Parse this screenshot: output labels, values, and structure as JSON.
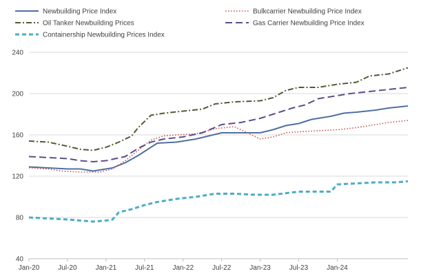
{
  "chart_data": {
    "type": "line",
    "title": "",
    "xlabel": "",
    "ylabel": "",
    "ylim": [
      40,
      240
    ],
    "yticks": [
      40,
      80,
      120,
      160,
      200,
      240
    ],
    "x_tick_labels": [
      "Jan-20",
      "Jul-20",
      "Jan-21",
      "Jul-21",
      "Jan-22",
      "Jul-22",
      "Jan-23",
      "Jul-23",
      "Jan-24"
    ],
    "grid": "horizontal",
    "legend_position": "top",
    "x_start": "Jan-20",
    "x_end": "Dec-24",
    "series": [
      {
        "name": "Newbuilding Price Index",
        "color": "#4f6fa0",
        "dash": "solid",
        "points": [
          [
            "Jan-20",
            129
          ],
          [
            "Apr-20",
            128
          ],
          [
            "Jul-20",
            127
          ],
          [
            "Sep-20",
            127
          ],
          [
            "Nov-20",
            125
          ],
          [
            "Dec-20",
            126
          ],
          [
            "Feb-21",
            128
          ],
          [
            "Apr-21",
            133
          ],
          [
            "Jun-21",
            140
          ],
          [
            "Aug-21",
            148
          ],
          [
            "Sep-21",
            152
          ],
          [
            "Dec-21",
            153
          ],
          [
            "Mar-22",
            156
          ],
          [
            "Jul-22",
            162
          ],
          [
            "Oct-22",
            162
          ],
          [
            "Jan-23",
            162
          ],
          [
            "Mar-23",
            165
          ],
          [
            "May-23",
            169
          ],
          [
            "Jul-23",
            171
          ],
          [
            "Sep-23",
            175
          ],
          [
            "Dec-23",
            178
          ],
          [
            "Feb-24",
            181
          ],
          [
            "Apr-24",
            182
          ],
          [
            "Jul-24",
            184
          ],
          [
            "Sep-24",
            186
          ],
          [
            "Dec-24",
            188
          ]
        ]
      },
      {
        "name": "Bulkcarrier Newbuilding Price Index",
        "color": "#c0504d",
        "dash": "dot",
        "points": [
          [
            "Jan-20",
            128
          ],
          [
            "Apr-20",
            127
          ],
          [
            "Jun-20",
            125
          ],
          [
            "Sep-20",
            124
          ],
          [
            "Dec-20",
            124
          ],
          [
            "Feb-21",
            127
          ],
          [
            "Apr-21",
            135
          ],
          [
            "Jun-21",
            145
          ],
          [
            "Aug-21",
            155
          ],
          [
            "Oct-21",
            159
          ],
          [
            "Dec-21",
            160
          ],
          [
            "Mar-22",
            161
          ],
          [
            "Jun-22",
            166
          ],
          [
            "Sep-22",
            168
          ],
          [
            "Nov-22",
            162
          ],
          [
            "Jan-23",
            156
          ],
          [
            "Mar-23",
            158
          ],
          [
            "May-23",
            162
          ],
          [
            "Jul-23",
            163
          ],
          [
            "Oct-23",
            164
          ],
          [
            "Jan-24",
            165
          ],
          [
            "Apr-24",
            167
          ],
          [
            "Jul-24",
            170
          ],
          [
            "Sep-24",
            172
          ],
          [
            "Dec-24",
            174
          ]
        ]
      },
      {
        "name": "Oil Tanker Newbuilding Prices",
        "color": "#4e5a32",
        "dash": "dashdot",
        "points": [
          [
            "Jan-20",
            154
          ],
          [
            "Apr-20",
            153
          ],
          [
            "Jul-20",
            149
          ],
          [
            "Sep-20",
            146
          ],
          [
            "Nov-20",
            145
          ],
          [
            "Jan-21",
            148
          ],
          [
            "Mar-21",
            153
          ],
          [
            "May-21",
            159
          ],
          [
            "Jun-21",
            167
          ],
          [
            "Aug-21",
            179
          ],
          [
            "Oct-21",
            181
          ],
          [
            "Jan-22",
            183
          ],
          [
            "Apr-22",
            185
          ],
          [
            "Jun-22",
            190
          ],
          [
            "Sep-22",
            192
          ],
          [
            "Jan-23",
            193
          ],
          [
            "Mar-23",
            196
          ],
          [
            "May-23",
            203
          ],
          [
            "Jul-23",
            206
          ],
          [
            "Oct-23",
            206
          ],
          [
            "Jan-24",
            209
          ],
          [
            "Apr-24",
            211
          ],
          [
            "Jun-24",
            217
          ],
          [
            "Sep-24",
            219
          ],
          [
            "Dec-24",
            225
          ]
        ]
      },
      {
        "name": "Gas Carrier Newbuilding Price Index",
        "color": "#5d4b8a",
        "dash": "longdash",
        "points": [
          [
            "Jan-20",
            139
          ],
          [
            "Apr-20",
            138
          ],
          [
            "Jul-20",
            137
          ],
          [
            "Sep-20",
            135
          ],
          [
            "Nov-20",
            134
          ],
          [
            "Jan-21",
            135
          ],
          [
            "Apr-21",
            139
          ],
          [
            "Jun-21",
            147
          ],
          [
            "Aug-21",
            153
          ],
          [
            "Oct-21",
            156
          ],
          [
            "Jan-22",
            158
          ],
          [
            "Apr-22",
            162
          ],
          [
            "Jul-22",
            170
          ],
          [
            "Oct-22",
            172
          ],
          [
            "Jan-23",
            176
          ],
          [
            "Mar-23",
            180
          ],
          [
            "Jun-23",
            186
          ],
          [
            "Aug-23",
            189
          ],
          [
            "Oct-23",
            195
          ],
          [
            "Jan-24",
            198
          ],
          [
            "Mar-24",
            200
          ],
          [
            "Jun-24",
            202
          ],
          [
            "Sep-24",
            204
          ],
          [
            "Dec-24",
            206
          ]
        ]
      },
      {
        "name": "Containership Newbuilding Prices Index",
        "color": "#4bacc6",
        "dash": "dash",
        "points": [
          [
            "Jan-20",
            80
          ],
          [
            "Apr-20",
            79
          ],
          [
            "Jul-20",
            78
          ],
          [
            "Sep-20",
            77
          ],
          [
            "Nov-20",
            76
          ],
          [
            "Jan-21",
            77
          ],
          [
            "Feb-21",
            78
          ],
          [
            "Mar-21",
            85
          ],
          [
            "May-21",
            88
          ],
          [
            "Jul-21",
            92
          ],
          [
            "Sep-21",
            95
          ],
          [
            "Dec-21",
            98
          ],
          [
            "Mar-22",
            100
          ],
          [
            "Jun-22",
            103
          ],
          [
            "Sep-22",
            103
          ],
          [
            "Dec-22",
            102
          ],
          [
            "Mar-23",
            102
          ],
          [
            "Jul-23",
            105
          ],
          [
            "Oct-23",
            105
          ],
          [
            "Dec-23",
            105
          ],
          [
            "Jan-24",
            112
          ],
          [
            "Apr-24",
            113
          ],
          [
            "Jul-24",
            114
          ],
          [
            "Oct-24",
            114
          ],
          [
            "Dec-24",
            115
          ]
        ]
      }
    ]
  }
}
